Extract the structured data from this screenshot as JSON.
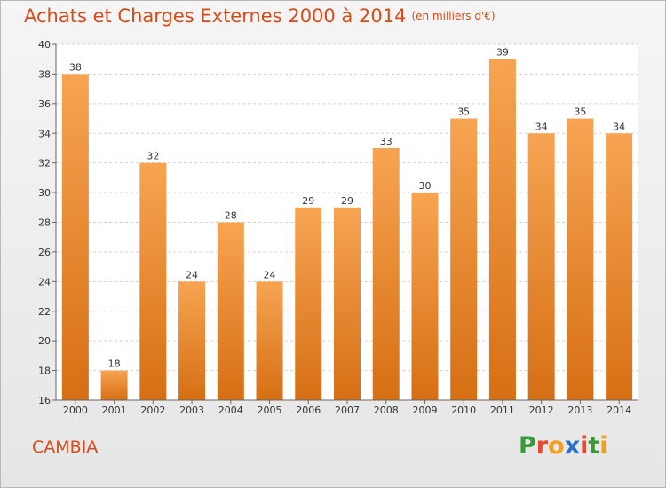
{
  "title": "Achats et Charges Externes 2000 à 2014",
  "subtitle": "(en milliers d'€)",
  "town": "CAMBIA",
  "brand": {
    "text": "Proxiti",
    "colors": [
      "#3a9a3a",
      "#e8482c",
      "#f0a020",
      "#2a73c9",
      "#e8482c",
      "#3a9a3a",
      "#f0a020"
    ]
  },
  "colors": {
    "title": "#d94a16",
    "bar_top": "#f7a452",
    "bar_bottom": "#d66f14"
  },
  "chart_data": {
    "type": "bar",
    "categories": [
      "2000",
      "2001",
      "2002",
      "2003",
      "2004",
      "2005",
      "2006",
      "2007",
      "2008",
      "2009",
      "2010",
      "2011",
      "2012",
      "2013",
      "2014"
    ],
    "values": [
      38,
      18,
      32,
      24,
      28,
      24,
      29,
      29,
      33,
      30,
      35,
      39,
      34,
      35,
      34
    ],
    "ylim": [
      16,
      40
    ],
    "yticks": [
      "16",
      "18",
      "20",
      "22",
      "24",
      "26",
      "28",
      "30",
      "32",
      "34",
      "36",
      "38",
      "40"
    ],
    "grid": true
  }
}
